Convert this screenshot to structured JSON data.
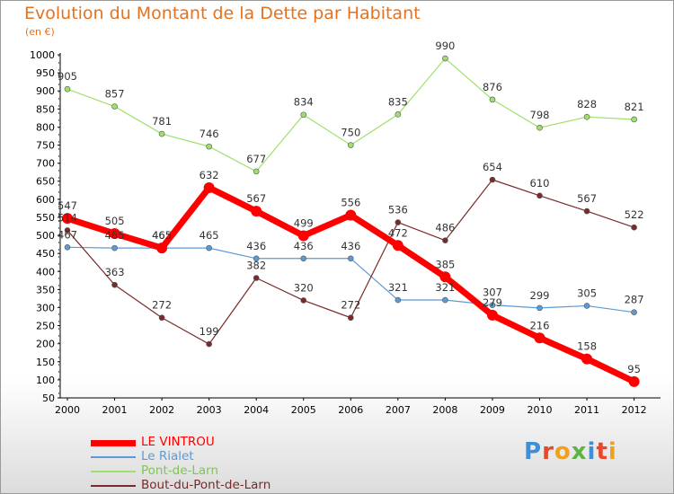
{
  "title": "Evolution du Montant de la Dette par Habitant",
  "subtitle": "(en €)",
  "brand": {
    "text": "Proxiti",
    "colors": [
      "#3d8fd8",
      "#e8472a",
      "#f0a020",
      "#5db344",
      "#3d8fd8",
      "#e8472a",
      "#f0a020"
    ]
  },
  "chart_data": {
    "type": "line",
    "x": [
      "2000",
      "2001",
      "2002",
      "2003",
      "2004",
      "2005",
      "2006",
      "2007",
      "2008",
      "2009",
      "2010",
      "2011",
      "2012"
    ],
    "ylim": [
      50,
      1000
    ],
    "yticks": [
      "50",
      "100",
      "150",
      "200",
      "250",
      "300",
      "350",
      "400",
      "450",
      "500",
      "550",
      "600",
      "650",
      "700",
      "750",
      "800",
      "850",
      "900",
      "950",
      "1000"
    ],
    "grid": false,
    "legend_position": "bottom-left",
    "series": [
      {
        "name": "LE VINTROU",
        "color": "#ff0000",
        "width": 7,
        "marker": 6,
        "values": [
          547,
          505,
          465,
          632,
          567,
          499,
          556,
          472,
          385,
          279,
          216,
          158,
          95
        ]
      },
      {
        "name": "Le Rialet",
        "color": "#5b9bd5",
        "width": 1.2,
        "marker": 3,
        "values": [
          467,
          465,
          465,
          465,
          436,
          436,
          436,
          321,
          321,
          307,
          299,
          305,
          287
        ]
      },
      {
        "name": "Pont-de-Larn",
        "color": "#9ee06c",
        "width": 1.2,
        "marker": 3,
        "values": [
          905,
          857,
          781,
          746,
          677,
          834,
          750,
          835,
          990,
          876,
          798,
          828,
          821
        ]
      },
      {
        "name": "Bout-du-Pont-de-Larn",
        "color": "#7a2a2a",
        "width": 1.2,
        "marker": 3,
        "values": [
          514,
          363,
          272,
          199,
          382,
          320,
          272,
          536,
          486,
          654,
          610,
          567,
          522
        ]
      }
    ]
  }
}
